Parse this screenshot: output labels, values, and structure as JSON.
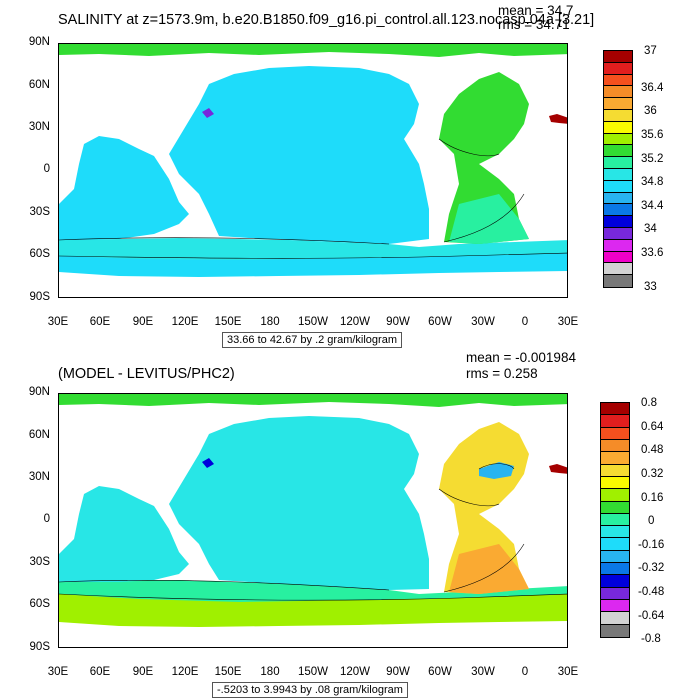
{
  "panels": [
    {
      "title": "SALINITY at z=1573.9m, b.e20.B1850.f09_g16.pi_control.all.123.nocasp.04a [3.21]",
      "mean": "mean = 34.7",
      "rms": "rms = 34.71",
      "range_note": "33.66 to 42.67 by .2 gram/kilogram",
      "lat_labels": [
        "90N",
        "60N",
        "30N",
        "0",
        "30S",
        "60S",
        "90S"
      ],
      "lon_labels": [
        "30E",
        "60E",
        "90E",
        "120E",
        "150E",
        "180",
        "150W",
        "120W",
        "90W",
        "60W",
        "30W",
        "0",
        "30E"
      ],
      "colorbar": {
        "labels": [
          "37",
          "36.4",
          "36",
          "35.6",
          "35.2",
          "34.8",
          "34.4",
          "34",
          "33.6",
          "33"
        ],
        "colors": [
          "#a50000",
          "#e11e1e",
          "#f5501e",
          "#f58c28",
          "#faaa32",
          "#f5dc32",
          "#fafa00",
          "#a0f000",
          "#32dc32",
          "#28f0a0",
          "#28e6e6",
          "#1edcfa",
          "#28b4f0",
          "#0a78e6",
          "#0000dc",
          "#7828dc",
          "#dc28f0",
          "#f000c8",
          "#d2d2d2",
          "#787878"
        ]
      }
    },
    {
      "title": "(MODEL - LEVITUS/PHC2)",
      "mean": "mean = -0.001984",
      "rms": "rms = 0.258",
      "range_note": "-.5203 to 3.9943 by .08 gram/kilogram",
      "lat_labels": [
        "90N",
        "60N",
        "30N",
        "0",
        "30S",
        "60S",
        "90S"
      ],
      "lon_labels": [
        "30E",
        "60E",
        "90E",
        "120E",
        "150E",
        "180",
        "150W",
        "120W",
        "90W",
        "60W",
        "30W",
        "0",
        "30E"
      ],
      "colorbar": {
        "labels": [
          "0.8",
          "0.64",
          "0.48",
          "0.32",
          "0.16",
          "0",
          "-0.16",
          "-0.32",
          "-0.48",
          "-0.64",
          "-0.8"
        ],
        "colors": [
          "#a50000",
          "#e11e1e",
          "#f5501e",
          "#f58c28",
          "#faaa32",
          "#f5dc32",
          "#fafa00",
          "#a0f000",
          "#32dc32",
          "#28f0a0",
          "#28e6e6",
          "#1edcfa",
          "#28b4f0",
          "#0a78e6",
          "#0000dc",
          "#7828dc",
          "#dc28f0",
          "#d2d2d2",
          "#787878"
        ]
      }
    }
  ]
}
